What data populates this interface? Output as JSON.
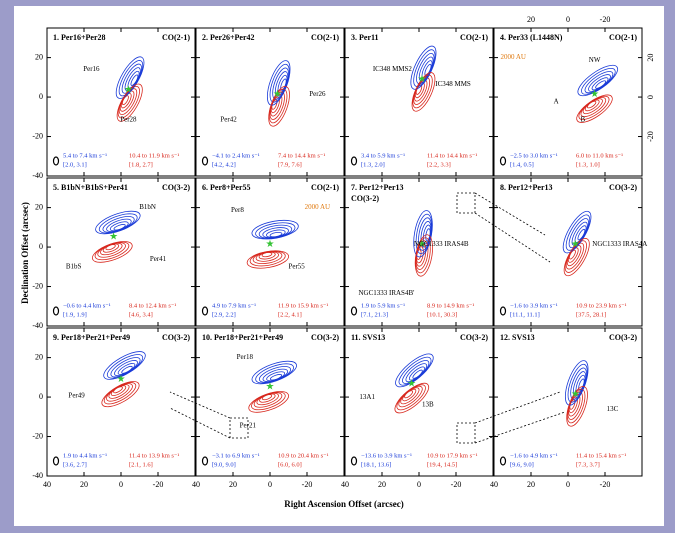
{
  "axes": {
    "x_label": "Right Ascension Offset (arcsec)",
    "y_label": "Declination Offset (arcsec)",
    "x_ticks": [
      "40",
      "20",
      "0",
      "-20"
    ],
    "y_ticks": [
      "20",
      "0",
      "-20",
      "-40"
    ],
    "top_ticks": [
      "20",
      "0",
      "-20"
    ],
    "right_ticks": [
      "20",
      "0",
      "-20"
    ]
  },
  "panels": [
    {
      "title": "1. Per16+Per28",
      "line": "CO(2-1)",
      "labels": [
        "Per16",
        "Per28"
      ],
      "blue_velocity": "5.4 to 7.4 km s⁻¹",
      "blue_range": "[2.0, 3.1]",
      "red_velocity": "10.4 to 11.9 km s⁻¹",
      "red_range": "[1.8, 2.7]"
    },
    {
      "title": "2. Per26+Per42",
      "line": "CO(2-1)",
      "labels": [
        "Per26",
        "Per42"
      ],
      "blue_velocity": "−4.1 to 2.4 km s⁻¹",
      "blue_range": "[4.2, 4.2]",
      "red_velocity": "7.4 to 14.4 km s⁻¹",
      "red_range": "[7.9, 7.6]"
    },
    {
      "title": "3. Per11",
      "line": "CO(2-1)",
      "labels": [
        "IC348 MMS2",
        "IC348 MMS"
      ],
      "blue_velocity": "3.4 to 5.9 km s⁻¹",
      "blue_range": "[1.3, 2.0]",
      "red_velocity": "11.4 to 14.4 km s⁻¹",
      "red_range": "[2.2, 3.3]"
    },
    {
      "title": "4. Per33 (L1448N)",
      "line": "CO(2-1)",
      "labels": [
        "2000 AU",
        "NW",
        "A",
        "B"
      ],
      "blue_velocity": "−2.5 to 3.0 km s⁻¹",
      "blue_range": "[1.4, 0.5]",
      "red_velocity": "6.0 to 11.0 km s⁻¹",
      "red_range": "[1.3, 1.0]"
    },
    {
      "title": "5. B1bN+B1bS+Per41",
      "line": "CO(3-2)",
      "labels": [
        "B1bN",
        "B1bS",
        "Per41"
      ],
      "blue_velocity": "−0.6 to 4.4 km s⁻¹",
      "blue_range": "[1.9, 1.9]",
      "red_velocity": "8.4 to 12.4 km s⁻¹",
      "red_range": "[4.6, 3.4]"
    },
    {
      "title": "6. Per8+Per55",
      "line": "CO(2-1)",
      "labels": [
        "Per8",
        "Per55",
        "2000 AU"
      ],
      "blue_velocity": "4.9 to 7.9 km s⁻¹",
      "blue_range": "[2.9, 2.2]",
      "red_velocity": "11.9 to 15.9 km s⁻¹",
      "red_range": "[2.2, 4.1]"
    },
    {
      "title": "7. Per12+Per13",
      "line": "CO(3-2)",
      "labels": [
        "NGC1333 IRAS4B",
        "NGC1333 IRAS4B'"
      ],
      "blue_velocity": "1.9 to 5.9 km s⁻¹",
      "blue_range": "[7.1, 21.3]",
      "red_velocity": "8.9 to 14.9 km s⁻¹",
      "red_range": "[10.1, 30.3]"
    },
    {
      "title": "8. Per12+Per13",
      "line": "CO(3-2)",
      "labels": [
        "NGC1333 IRAS4A"
      ],
      "blue_velocity": "−1.6 to 3.9 km s⁻¹",
      "blue_range": "[11.1, 11.1]",
      "red_velocity": "10.9 to 23.9 km s⁻¹",
      "red_range": "[37.5, 28.1]"
    },
    {
      "title": "9. Per18+Per21+Per49",
      "line": "CO(3-2)",
      "labels": [
        "Per49"
      ],
      "blue_velocity": "1.9 to 4.4 km s⁻¹",
      "blue_range": "[3.6, 2.7]",
      "red_velocity": "11.4 to 13.9 km s⁻¹",
      "red_range": "[2.1, 1.6]"
    },
    {
      "title": "10. Per18+Per21+Per49",
      "line": "CO(3-2)",
      "labels": [
        "Per18",
        "Per21"
      ],
      "blue_velocity": "−3.1 to 6.9 km s⁻¹",
      "blue_range": "[9.0, 9.0]",
      "red_velocity": "10.9 to 20.4 km s⁻¹",
      "red_range": "[6.0, 6.0]"
    },
    {
      "title": "11. SVS13",
      "line": "CO(3-2)",
      "labels": [
        "13A1",
        "13B"
      ],
      "blue_velocity": "−13.6 to 3.9 km s⁻¹",
      "blue_range": "[18.1, 13.6]",
      "red_velocity": "10.9 to 17.9 km s⁻¹",
      "red_range": "[19.4, 14.5]"
    },
    {
      "title": "12. SVS13",
      "line": "CO(3-2)",
      "labels": [
        "13C"
      ],
      "blue_velocity": "−1.6 to 4.9 km s⁻¹",
      "blue_range": "[9.6, 9.0]",
      "red_velocity": "11.4 to 15.4 km s⁻¹",
      "red_range": "[7.3, 3.7]"
    }
  ]
}
